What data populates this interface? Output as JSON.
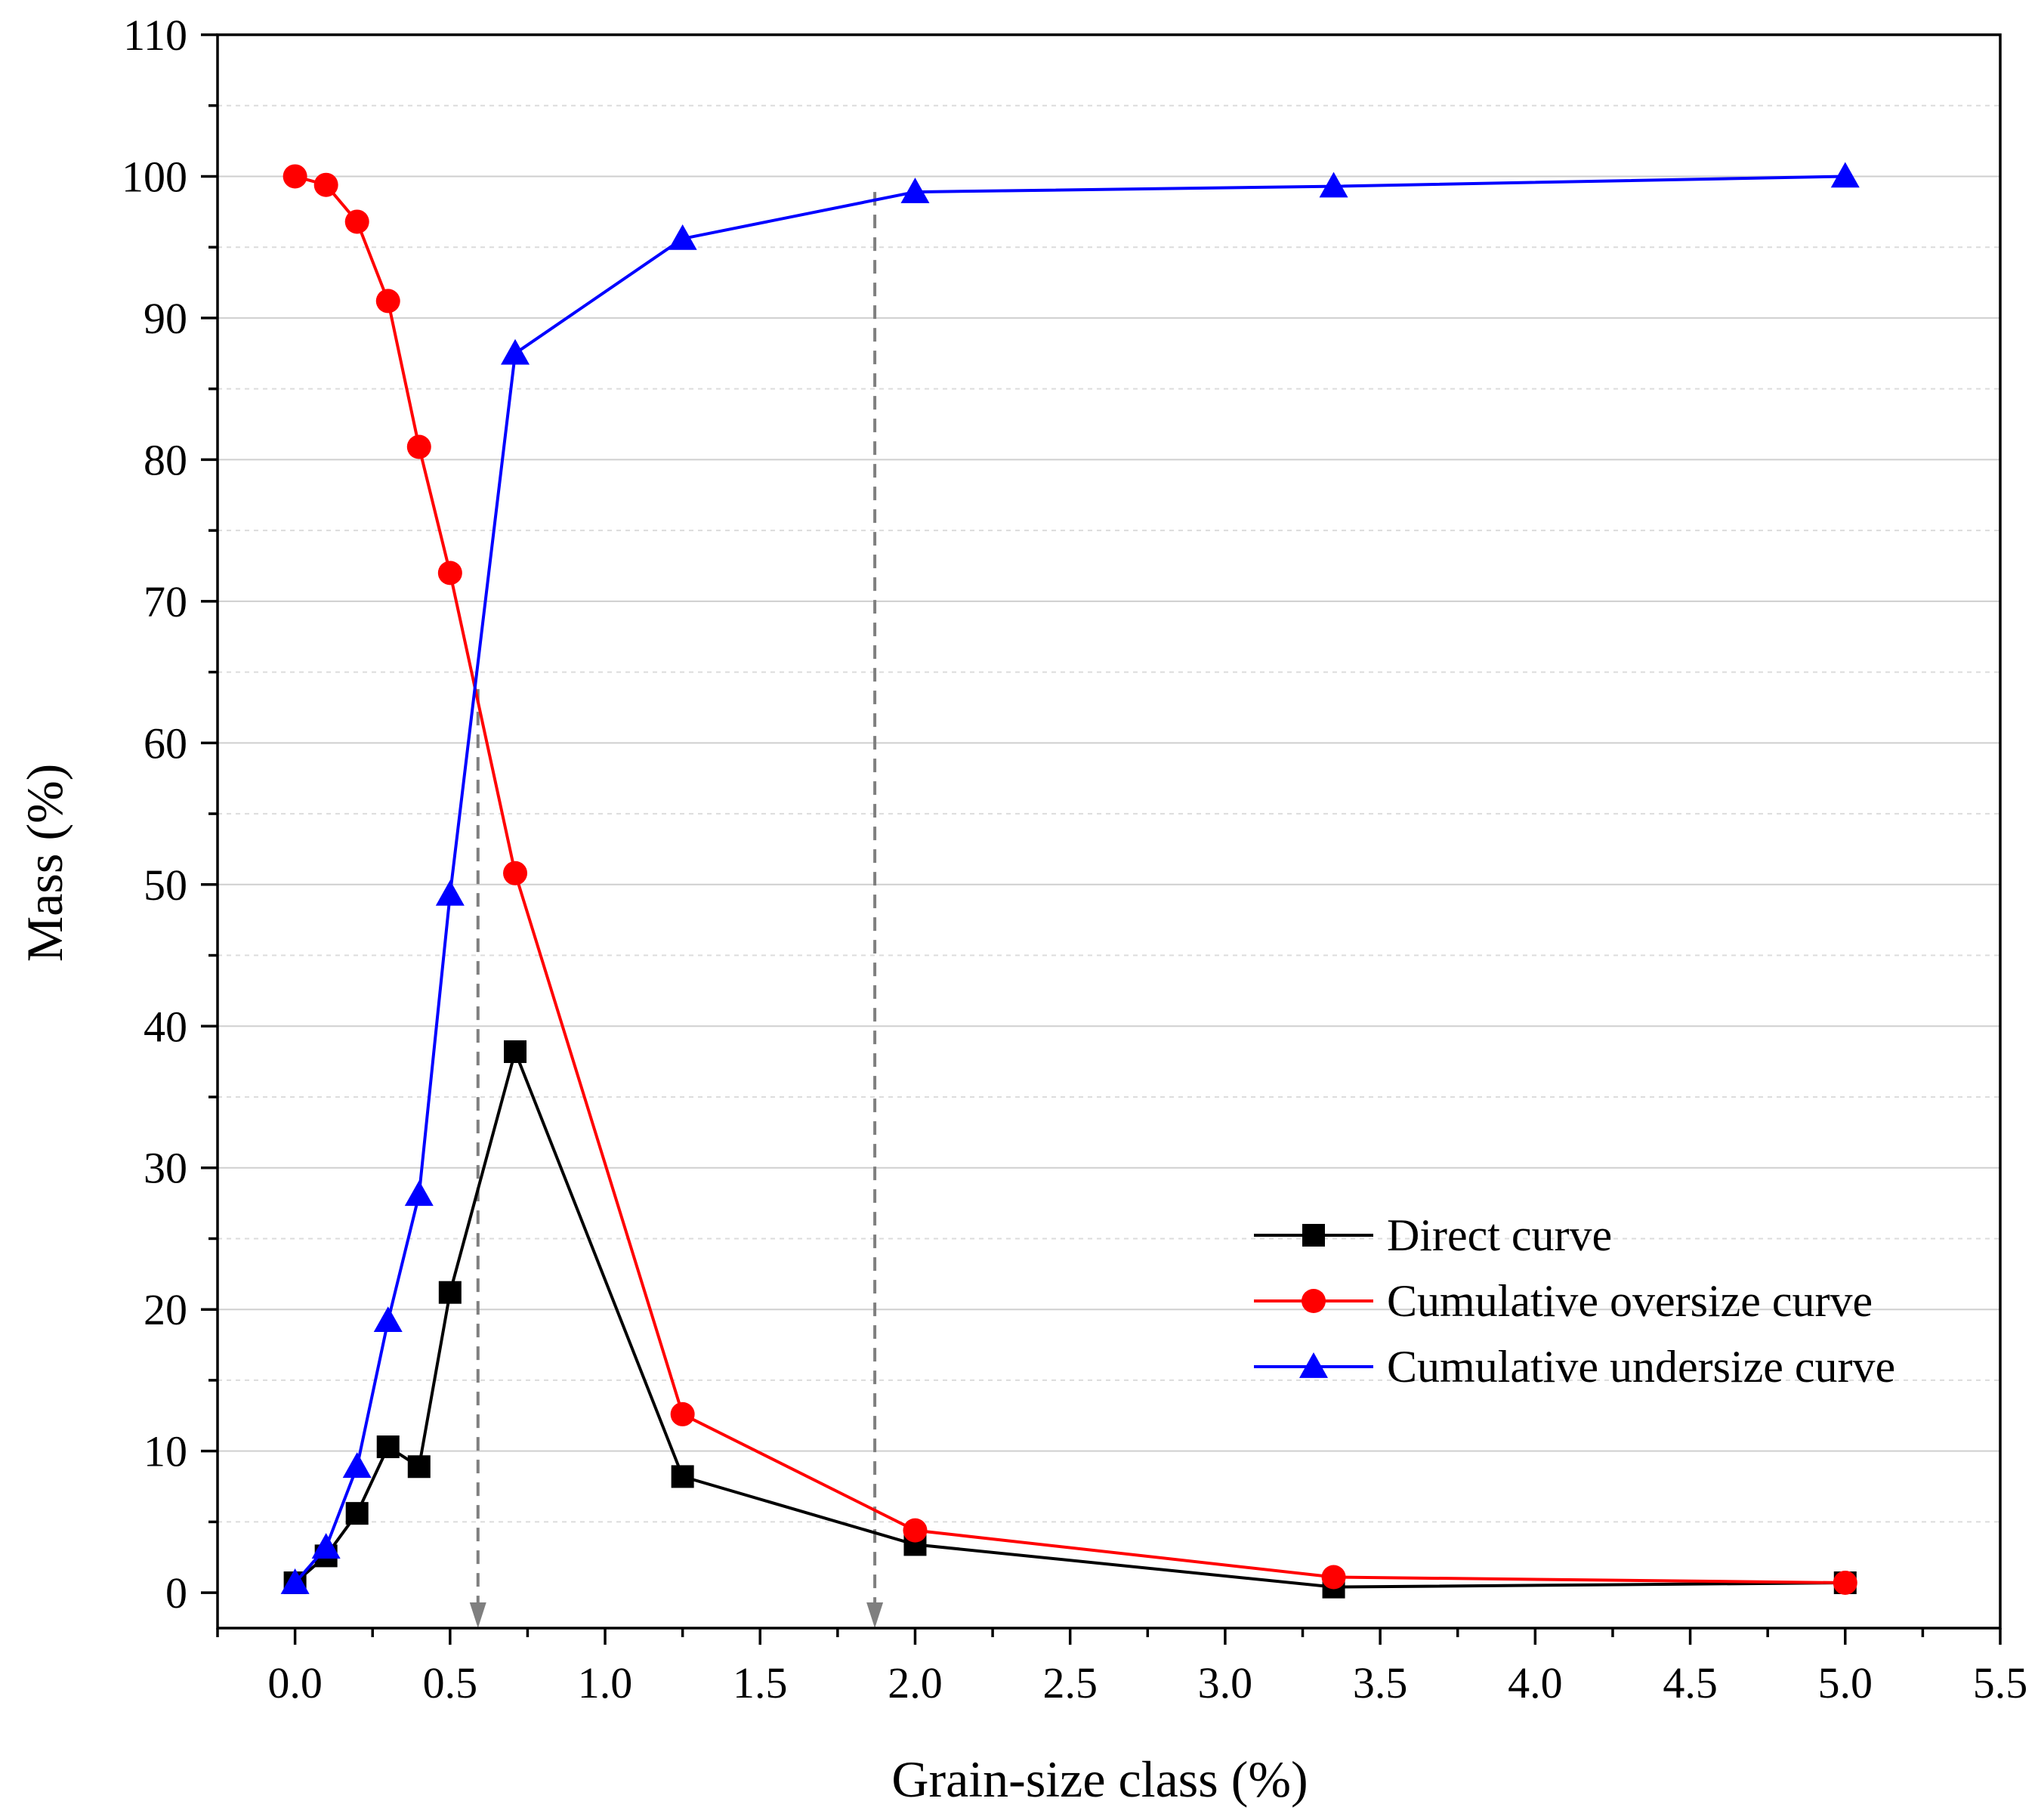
{
  "chart_data": {
    "type": "line",
    "title": "",
    "xlabel": "Grain-size class (%)",
    "ylabel": "Mass (%)",
    "xlim": [
      -0.25,
      5.5
    ],
    "ylim": [
      -2.5,
      110
    ],
    "xticks": [
      0.0,
      0.5,
      1.0,
      1.5,
      2.0,
      2.5,
      3.0,
      3.5,
      4.0,
      4.5,
      5.0,
      5.5
    ],
    "xtick_labels": [
      "0.0",
      "0.5",
      "1.0",
      "1.5",
      "2.0",
      "2.5",
      "3.0",
      "3.5",
      "4.0",
      "4.5",
      "5.0",
      "5.5"
    ],
    "yticks": [
      0,
      10,
      20,
      30,
      40,
      50,
      60,
      70,
      80,
      90,
      100,
      110
    ],
    "ytick_labels": [
      "0",
      "10",
      "20",
      "30",
      "40",
      "50",
      "60",
      "70",
      "80",
      "90",
      "100",
      "110"
    ],
    "grid": true,
    "legend_position": "lower-right",
    "series": [
      {
        "name": "Direct curve",
        "color": "#000000",
        "marker": "square",
        "x": [
          0.0,
          0.1,
          0.2,
          0.3,
          0.4,
          0.5,
          0.71,
          1.25,
          2.0,
          3.35,
          5.0
        ],
        "y": [
          0.7,
          2.6,
          5.6,
          10.3,
          8.9,
          21.2,
          38.2,
          8.2,
          3.4,
          0.4,
          0.7
        ]
      },
      {
        "name": "Cumulative oversize curve",
        "color": "#ff0000",
        "marker": "circle",
        "x": [
          0.0,
          0.1,
          0.2,
          0.3,
          0.4,
          0.5,
          0.71,
          1.25,
          2.0,
          3.35,
          5.0
        ],
        "y": [
          100.0,
          99.4,
          96.8,
          91.2,
          80.9,
          72.0,
          50.8,
          12.6,
          4.4,
          1.1,
          0.7
        ]
      },
      {
        "name": "Cumulative undersize curve",
        "color": "#0000ff",
        "marker": "triangle",
        "x": [
          0.0,
          0.1,
          0.2,
          0.3,
          0.4,
          0.5,
          0.71,
          1.25,
          2.0,
          3.35,
          5.0
        ],
        "y": [
          0.7,
          3.2,
          8.9,
          19.2,
          28.1,
          49.3,
          87.5,
          95.6,
          98.9,
          99.3,
          100.0
        ]
      }
    ],
    "reference_lines": [
      {
        "x": 0.59,
        "y_from": 63.8,
        "y_to": -2.5,
        "style": "dashed-arrow",
        "color": "#7f7f7f"
      },
      {
        "x": 1.87,
        "y_from": 98.9,
        "y_to": -2.5,
        "style": "dashed-arrow",
        "color": "#7f7f7f"
      }
    ]
  }
}
